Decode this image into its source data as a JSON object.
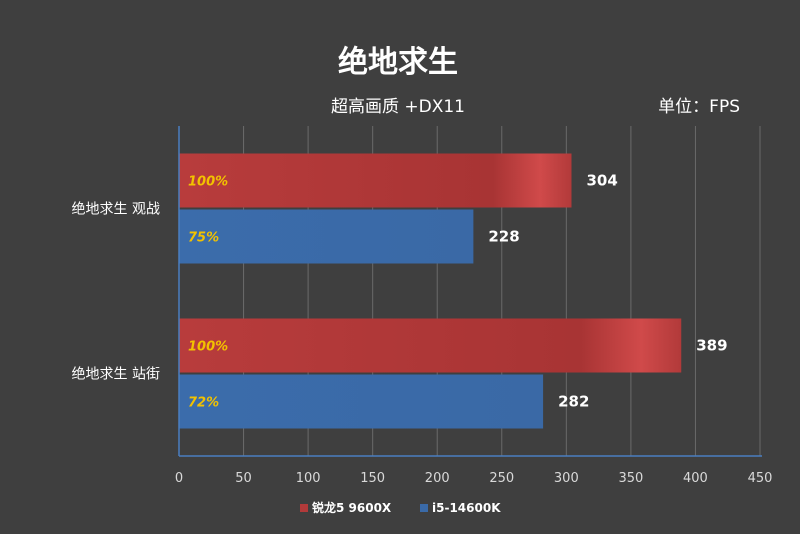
{
  "chart_data": {
    "type": "bar",
    "orientation": "horizontal",
    "title": "绝地求生",
    "subtitle": "超高画质 +DX11",
    "unit": "单位：FPS",
    "categories": [
      "绝地求生 观战",
      "绝地求生 站街"
    ],
    "series": [
      {
        "name": "锐龙5 9600X",
        "color": "#b23a3a",
        "values": [
          304,
          389
        ],
        "percent_labels": [
          "100%",
          "100%"
        ]
      },
      {
        "name": "i5-14600K",
        "color": "#3a6aa8",
        "values": [
          228,
          282
        ],
        "percent_labels": [
          "75%",
          "72%"
        ]
      }
    ],
    "xlim": [
      0,
      450
    ],
    "xticks": [
      0,
      50,
      100,
      150,
      200,
      250,
      300,
      350,
      400,
      450
    ],
    "grid": true,
    "legend_position": "bottom"
  }
}
